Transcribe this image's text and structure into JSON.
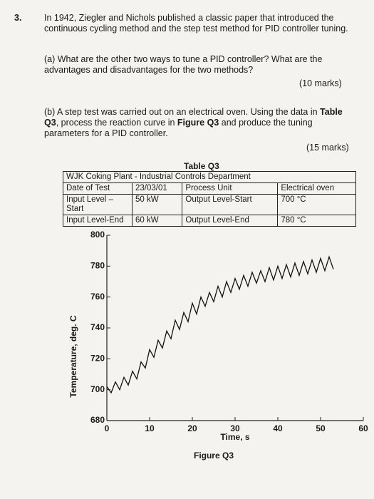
{
  "question": {
    "number": "3.",
    "intro": "In 1942, Ziegler and Nichols published a classic paper that introduced the continuous cycling method and the step test method for PID controller tuning.",
    "part_a": {
      "text": "(a) What are the other two ways to tune a PID controller? What are the advantages and disadvantages for the two methods?",
      "marks": "(10 marks)"
    },
    "part_b": {
      "text": [
        "(b) A step test was carried out on an electrical oven. Using the data in ",
        "Table Q3",
        ", process the reaction curve in ",
        "Figure Q3",
        " and produce the tuning parameters for a PID controller."
      ],
      "marks": "(15 marks)"
    }
  },
  "table": {
    "title": "Table Q3",
    "header": "WJK Coking Plant - Industrial Controls Department",
    "rows": [
      [
        "Date of Test",
        "23/03/01",
        "Process Unit",
        "Electrical oven"
      ],
      [
        "Input Level – Start",
        "50 kW",
        "Output Level-Start",
        "700 °C"
      ],
      [
        "Input Level-End",
        "60 kW",
        "Output Level-End",
        "780 °C"
      ]
    ]
  },
  "figure": {
    "type": "line",
    "caption": "Figure Q3",
    "xlabel": "Time, s",
    "ylabel": "Temperature, deg. C",
    "color": "#111111",
    "xlim": [
      0,
      60
    ],
    "ylim": [
      680,
      800
    ],
    "xticks": [
      0,
      10,
      20,
      30,
      40,
      50,
      60
    ],
    "yticks": [
      680,
      700,
      720,
      740,
      760,
      780,
      800
    ],
    "x": [
      0,
      1,
      2,
      3,
      4,
      5,
      6,
      7,
      8,
      9,
      10,
      11,
      12,
      13,
      14,
      15,
      16,
      17,
      18,
      19,
      20,
      21,
      22,
      23,
      24,
      25,
      26,
      27,
      28,
      29,
      30,
      31,
      32,
      33,
      34,
      35,
      36,
      37,
      38,
      39,
      40,
      41,
      42,
      43,
      44,
      45,
      46,
      47,
      48,
      49,
      50,
      51,
      52,
      53
    ],
    "values": [
      702,
      698,
      705,
      700,
      708,
      703,
      712,
      707,
      718,
      714,
      726,
      721,
      732,
      727,
      738,
      733,
      745,
      739,
      750,
      744,
      756,
      749,
      760,
      754,
      763,
      757,
      767,
      760,
      770,
      763,
      772,
      765,
      774,
      767,
      776,
      769,
      777,
      770,
      779,
      771,
      780,
      772,
      781,
      773,
      782,
      774,
      783,
      775,
      784,
      776,
      785,
      777,
      786,
      778
    ]
  }
}
